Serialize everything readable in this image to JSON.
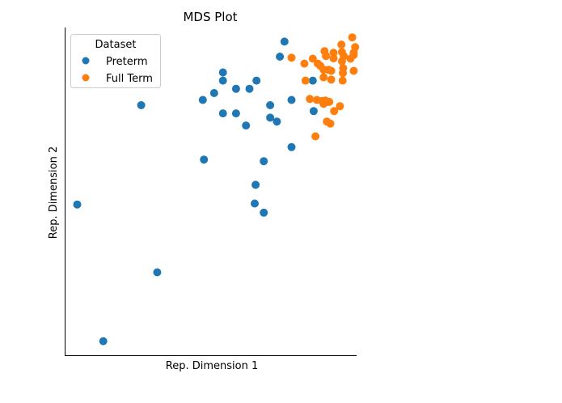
{
  "chart_data": {
    "type": "scatter",
    "title": "MDS Plot",
    "xlabel": "Rep. Dimension 1",
    "ylabel": "Rep. Dimension 2",
    "xlim": [
      0,
      100
    ],
    "ylim": [
      0,
      100
    ],
    "ticks": "none",
    "grid": false,
    "legend": {
      "title": "Dataset",
      "placement": "top-left"
    },
    "series": [
      {
        "name": "Preterm",
        "color": "#1f77b4",
        "points": [
          [
            75.3,
            95.7
          ],
          [
            73.7,
            91.1
          ],
          [
            85.0,
            83.8
          ],
          [
            54.2,
            86.3
          ],
          [
            54.2,
            83.8
          ],
          [
            65.7,
            83.8
          ],
          [
            58.7,
            81.3
          ],
          [
            63.3,
            81.3
          ],
          [
            51.2,
            80.0
          ],
          [
            47.3,
            77.9
          ],
          [
            77.7,
            77.9
          ],
          [
            26.2,
            76.3
          ],
          [
            70.4,
            76.3
          ],
          [
            85.3,
            74.5
          ],
          [
            54.2,
            73.8
          ],
          [
            58.7,
            73.8
          ],
          [
            70.4,
            72.5
          ],
          [
            72.7,
            71.3
          ],
          [
            62.1,
            70.1
          ],
          [
            77.7,
            63.5
          ],
          [
            47.7,
            59.7
          ],
          [
            68.2,
            59.2
          ],
          [
            65.4,
            52.0
          ],
          [
            65.1,
            46.3
          ],
          [
            68.2,
            43.5
          ],
          [
            4.3,
            46.0
          ],
          [
            31.7,
            25.3
          ],
          [
            13.2,
            4.3
          ]
        ]
      },
      {
        "name": "Full Term",
        "color": "#ff7f0e",
        "points": [
          [
            94.8,
            94.8
          ],
          [
            89.0,
            92.8
          ],
          [
            92.1,
            92.3
          ],
          [
            95.0,
            92.5
          ],
          [
            99.0,
            92.3
          ],
          [
            95.6,
            91.3
          ],
          [
            92.1,
            90.6
          ],
          [
            99.0,
            91.6
          ],
          [
            89.5,
            91.3
          ],
          [
            97.9,
            90.5
          ],
          [
            85.0,
            90.5
          ],
          [
            95.0,
            89.7
          ],
          [
            77.7,
            90.8
          ],
          [
            86.7,
            89.0
          ],
          [
            82.1,
            89.0
          ],
          [
            87.6,
            88.3
          ],
          [
            88.7,
            87.1
          ],
          [
            90.3,
            87.1
          ],
          [
            95.4,
            87.6
          ],
          [
            91.3,
            86.8
          ],
          [
            95.3,
            86.1
          ],
          [
            88.7,
            84.8
          ],
          [
            91.3,
            84.1
          ],
          [
            95.2,
            83.8
          ],
          [
            82.5,
            83.8
          ],
          [
            99.0,
            86.8
          ],
          [
            98.5,
            97.0
          ],
          [
            99.5,
            94.0
          ],
          [
            84.0,
            78.2
          ],
          [
            86.4,
            77.9
          ],
          [
            88.2,
            77.6
          ],
          [
            89.3,
            77.7
          ],
          [
            90.3,
            77.3
          ],
          [
            88.7,
            76.7
          ],
          [
            90.6,
            77.3
          ],
          [
            94.3,
            76.0
          ],
          [
            92.3,
            74.5
          ],
          [
            91.0,
            70.7
          ],
          [
            89.8,
            71.3
          ],
          [
            85.9,
            66.8
          ]
        ]
      }
    ]
  }
}
